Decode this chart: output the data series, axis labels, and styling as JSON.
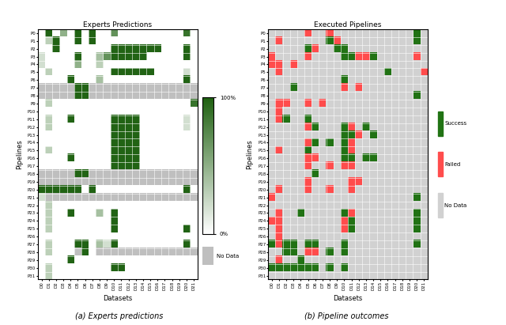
{
  "pipelines": [
    "P0",
    "P1",
    "P2",
    "P3",
    "P4",
    "P5",
    "P6",
    "P7",
    "P8",
    "P9",
    "P10",
    "P11",
    "P12",
    "P13",
    "P14",
    "P15",
    "P16",
    "P17",
    "P18",
    "P19",
    "P20",
    "P21",
    "P22",
    "P23",
    "P24",
    "P25",
    "P26",
    "P27",
    "P28",
    "P29",
    "P30",
    "P31"
  ],
  "datasets": [
    "D0",
    "D1",
    "D2",
    "D3",
    "D4",
    "D5",
    "D6",
    "D7",
    "D8",
    "D9",
    "D10",
    "D11",
    "D12",
    "D13",
    "D14",
    "D15",
    "D16",
    "D17",
    "D18",
    "D19",
    "D20",
    "D21"
  ],
  "title_left": "Experts Predictions",
  "title_right": "Executed Pipelines",
  "xlabel": "Datasets",
  "ylabel": "Pipelines",
  "fig_label_left": "(a) Experts predictions",
  "fig_label_right": "(b) Pipeline outcomes",
  "expert_matrix": [
    [
      -1,
      1.0,
      -1,
      0.5,
      -1,
      1.0,
      -1,
      1.0,
      -1,
      -1,
      0.7,
      -1,
      -1,
      -1,
      -1,
      -1,
      -1,
      -1,
      -1,
      -1,
      0.9,
      -1
    ],
    [
      -1,
      0.3,
      1.0,
      -1,
      -1,
      1.0,
      -1,
      1.0,
      -1,
      -1,
      -1,
      -1,
      -1,
      -1,
      -1,
      -1,
      -1,
      -1,
      -1,
      -1,
      -1,
      -1
    ],
    [
      -1,
      -1,
      1.0,
      -1,
      -1,
      -1,
      -1,
      -1,
      -1,
      -1,
      1.0,
      1.0,
      1.0,
      1.0,
      1.0,
      1.0,
      1.0,
      -1,
      -1,
      -1,
      1.0,
      -1
    ],
    [
      0.2,
      -1,
      -1,
      -1,
      -1,
      1.0,
      -1,
      -1,
      0.4,
      0.7,
      1.0,
      1.0,
      1.0,
      1.0,
      1.0,
      -1,
      0.0,
      -1,
      -1,
      -1,
      1.0,
      -1
    ],
    [
      0.2,
      -1,
      -1,
      -1,
      -1,
      0.5,
      -1,
      -1,
      0.3,
      -1,
      -1,
      -1,
      -1,
      -1,
      -1,
      -1,
      -1,
      -1,
      -1,
      -1,
      -1,
      -1
    ],
    [
      -1,
      0.3,
      -1,
      -1,
      -1,
      -1,
      -1,
      -1,
      -1,
      -1,
      1.0,
      1.0,
      1.0,
      1.0,
      1.0,
      1.0,
      -1,
      -1,
      -1,
      -1,
      0.2,
      -1
    ],
    [
      -1,
      -1,
      -1,
      -1,
      1.0,
      -1,
      -1,
      -1,
      0.4,
      -1,
      -1,
      -1,
      -1,
      -1,
      -1,
      -1,
      -1,
      -1,
      -1,
      -1,
      1.0,
      -1
    ],
    [
      -2,
      -2,
      -2,
      -2,
      -2,
      1.0,
      1.0,
      -2,
      -2,
      -2,
      -2,
      -2,
      -2,
      -2,
      -2,
      -2,
      -2,
      -2,
      -2,
      -2,
      -2,
      -2
    ],
    [
      -2,
      -2,
      -2,
      -2,
      -2,
      1.0,
      1.0,
      -2,
      -2,
      -2,
      -2,
      -2,
      -2,
      -2,
      -2,
      -2,
      -2,
      -2,
      -2,
      -2,
      -2,
      -2
    ],
    [
      -1,
      0.3,
      -1,
      -1,
      -1,
      -1,
      -1,
      -1,
      -1,
      -1,
      -1,
      -1,
      -1,
      -1,
      -1,
      -1,
      -1,
      -1,
      -1,
      -1,
      -1,
      0.9
    ],
    [
      -1,
      -1,
      -1,
      -1,
      -1,
      -1,
      -1,
      -1,
      -1,
      -1,
      -1,
      -1,
      -1,
      -1,
      -1,
      -1,
      -1,
      -1,
      -1,
      -1,
      -1,
      -1
    ],
    [
      -1,
      0.3,
      -1,
      -1,
      1.0,
      -1,
      -1,
      -1,
      -1,
      -1,
      1.0,
      1.0,
      1.0,
      1.0,
      -1,
      -1,
      -1,
      -1,
      -1,
      -1,
      0.2,
      -1
    ],
    [
      -1,
      0.3,
      -1,
      -1,
      -1,
      -1,
      -1,
      -1,
      -1,
      -1,
      1.0,
      1.0,
      1.0,
      1.0,
      -1,
      -1,
      -1,
      -1,
      -1,
      -1,
      0.2,
      -1
    ],
    [
      -1,
      -1,
      -1,
      -1,
      -1,
      -1,
      -1,
      -1,
      -1,
      -1,
      1.0,
      1.0,
      1.0,
      1.0,
      -1,
      -1,
      -1,
      -1,
      -1,
      -1,
      -1,
      -1
    ],
    [
      -1,
      -1,
      -1,
      -1,
      -1,
      -1,
      -1,
      -1,
      -1,
      -1,
      1.0,
      1.0,
      1.0,
      1.0,
      -1,
      -1,
      -1,
      -1,
      -1,
      -1,
      -1,
      -1
    ],
    [
      -1,
      0.3,
      -1,
      -1,
      -1,
      -1,
      -1,
      -1,
      -1,
      -1,
      1.0,
      1.0,
      1.0,
      1.0,
      -1,
      -1,
      -1,
      -1,
      -1,
      -1,
      -1,
      -1
    ],
    [
      -1,
      -1,
      -1,
      -1,
      1.0,
      -1,
      -1,
      -1,
      -1,
      -1,
      1.0,
      1.0,
      1.0,
      1.0,
      -1,
      -1,
      -1,
      -1,
      -1,
      -1,
      -1,
      -1
    ],
    [
      -1,
      -1,
      -1,
      -1,
      -1,
      -1,
      -1,
      -1,
      -1,
      -1,
      1.0,
      1.0,
      1.0,
      1.0,
      -1,
      -1,
      -1,
      -1,
      -1,
      -1,
      -1,
      -1
    ],
    [
      -2,
      -2,
      -2,
      -2,
      -2,
      1.0,
      1.0,
      -2,
      -2,
      -2,
      -2,
      -2,
      -2,
      -2,
      -2,
      -2,
      -2,
      -2,
      -2,
      -2,
      -2,
      -2
    ],
    [
      -2,
      -2,
      -2,
      -2,
      -2,
      -2,
      -2,
      -2,
      -2,
      -2,
      -2,
      -2,
      -2,
      -2,
      -2,
      -2,
      -2,
      -2,
      -2,
      -2,
      -2,
      -2
    ],
    [
      1.0,
      1.0,
      1.0,
      1.0,
      1.0,
      1.0,
      -1,
      1.0,
      -1,
      -1,
      -1,
      -1,
      -1,
      -1,
      -1,
      -1,
      -1,
      -1,
      -1,
      -1,
      1.0,
      -1
    ],
    [
      0.2,
      -2,
      -2,
      -2,
      -2,
      -2,
      -2,
      -2,
      -2,
      -2,
      -2,
      -2,
      -2,
      -2,
      -2,
      -2,
      -2,
      -2,
      -2,
      -2,
      -2,
      -2
    ],
    [
      -1,
      0.3,
      -1,
      -1,
      -1,
      -1,
      -1,
      -1,
      -1,
      -1,
      -1,
      -1,
      -1,
      -1,
      -1,
      -1,
      -1,
      -1,
      -1,
      -1,
      -1,
      -1
    ],
    [
      -1,
      0.3,
      -1,
      -1,
      1.0,
      -1,
      -1,
      -1,
      0.4,
      -1,
      1.0,
      -1,
      -1,
      -1,
      -1,
      -1,
      -1,
      -1,
      -1,
      -1,
      -1,
      -1
    ],
    [
      -1,
      0.3,
      -1,
      -1,
      -1,
      -1,
      -1,
      -1,
      -1,
      -1,
      1.0,
      -1,
      -1,
      -1,
      -1,
      -1,
      -1,
      -1,
      -1,
      -1,
      -1,
      -1
    ],
    [
      -1,
      0.3,
      -1,
      -1,
      -1,
      -1,
      -1,
      -1,
      -1,
      -1,
      1.0,
      -1,
      -1,
      -1,
      -1,
      -1,
      -1,
      -1,
      -1,
      -1,
      1.0,
      -1
    ],
    [
      -1,
      -1,
      -1,
      -1,
      -1,
      -1,
      -1,
      -1,
      -1,
      -1,
      -1,
      -1,
      -1,
      -1,
      -1,
      -1,
      -1,
      -1,
      -1,
      -1,
      -1,
      -1
    ],
    [
      -1,
      0.3,
      -1,
      -1,
      -1,
      1.0,
      1.0,
      -1,
      0.4,
      0.2,
      1.0,
      -1,
      -1,
      -1,
      -1,
      -1,
      -1,
      -1,
      -1,
      -1,
      1.0,
      -1
    ],
    [
      -1,
      0.3,
      -1,
      -1,
      -1,
      -2,
      1.0,
      -1,
      -2,
      -2,
      -2,
      -2,
      -2,
      -2,
      -2,
      -2,
      -2,
      -2,
      -2,
      -2,
      -2,
      -2
    ],
    [
      -1,
      -1,
      -1,
      -1,
      1.0,
      -1,
      -1,
      -1,
      -1,
      -1,
      -1,
      -1,
      -1,
      -1,
      -1,
      -1,
      -1,
      -1,
      -1,
      -1,
      -1,
      -1
    ],
    [
      -1,
      0.3,
      -1,
      -1,
      -1,
      -1,
      -1,
      -1,
      -1,
      -1,
      1.0,
      1.0,
      -1,
      -1,
      -1,
      -1,
      -1,
      -1,
      -1,
      -1,
      -1,
      -1
    ],
    [
      -1,
      0.3,
      -1,
      -1,
      -1,
      -1,
      -1,
      -1,
      -1,
      -1,
      -1,
      -1,
      -1,
      -1,
      -1,
      -1,
      -1,
      -1,
      -1,
      -1,
      -1,
      -1
    ]
  ],
  "pipe_matrix": [
    [
      0,
      0,
      0,
      0,
      0,
      -1,
      0,
      0,
      -1,
      0,
      0,
      0,
      0,
      0,
      0,
      0,
      0,
      0,
      0,
      0,
      1,
      0
    ],
    [
      0,
      -1,
      0,
      0,
      0,
      0,
      0,
      0,
      1,
      -1,
      0,
      0,
      0,
      0,
      0,
      0,
      0,
      0,
      0,
      0,
      1,
      0
    ],
    [
      0,
      0,
      0,
      0,
      0,
      1,
      -1,
      0,
      0,
      1,
      1,
      0,
      0,
      0,
      0,
      0,
      0,
      0,
      0,
      0,
      0,
      0
    ],
    [
      -1,
      0,
      0,
      0,
      0,
      -1,
      0,
      0,
      0,
      0,
      1,
      1,
      -1,
      -1,
      1,
      0,
      0,
      0,
      0,
      0,
      -1,
      0
    ],
    [
      -1,
      -1,
      0,
      -1,
      0,
      0,
      0,
      0,
      0,
      0,
      0,
      0,
      0,
      0,
      0,
      0,
      0,
      0,
      0,
      0,
      0,
      0
    ],
    [
      0,
      -1,
      0,
      0,
      0,
      0,
      0,
      0,
      0,
      0,
      0,
      0,
      0,
      0,
      0,
      0,
      1,
      0,
      0,
      0,
      0,
      -1
    ],
    [
      0,
      0,
      0,
      0,
      0,
      0,
      0,
      0,
      0,
      0,
      1,
      0,
      0,
      0,
      0,
      0,
      0,
      0,
      0,
      0,
      0,
      0
    ],
    [
      0,
      0,
      0,
      1,
      0,
      0,
      0,
      0,
      0,
      0,
      -1,
      0,
      -1,
      0,
      0,
      0,
      0,
      0,
      0,
      0,
      0,
      0
    ],
    [
      0,
      0,
      0,
      0,
      0,
      0,
      0,
      0,
      0,
      0,
      0,
      0,
      0,
      0,
      0,
      0,
      0,
      0,
      0,
      0,
      1,
      0
    ],
    [
      0,
      -1,
      -1,
      0,
      0,
      -1,
      0,
      -1,
      0,
      0,
      0,
      0,
      0,
      0,
      0,
      0,
      0,
      0,
      0,
      0,
      0,
      0
    ],
    [
      0,
      -1,
      0,
      0,
      0,
      0,
      0,
      0,
      0,
      0,
      0,
      0,
      0,
      0,
      0,
      0,
      0,
      0,
      0,
      0,
      0,
      0
    ],
    [
      0,
      -1,
      1,
      0,
      0,
      1,
      0,
      0,
      0,
      0,
      0,
      0,
      0,
      0,
      0,
      0,
      0,
      0,
      0,
      0,
      0,
      0
    ],
    [
      0,
      0,
      0,
      0,
      0,
      -1,
      1,
      0,
      0,
      0,
      1,
      -1,
      0,
      1,
      0,
      0,
      0,
      0,
      0,
      0,
      0,
      0
    ],
    [
      0,
      0,
      0,
      0,
      0,
      0,
      0,
      0,
      0,
      0,
      1,
      1,
      -1,
      0,
      1,
      0,
      0,
      0,
      0,
      0,
      0,
      0
    ],
    [
      0,
      0,
      0,
      0,
      0,
      -1,
      1,
      0,
      1,
      0,
      1,
      -1,
      0,
      0,
      0,
      0,
      0,
      0,
      0,
      0,
      0,
      0
    ],
    [
      0,
      -1,
      0,
      0,
      0,
      1,
      0,
      0,
      0,
      0,
      1,
      -1,
      0,
      0,
      0,
      0,
      0,
      0,
      0,
      0,
      0,
      0
    ],
    [
      0,
      0,
      0,
      0,
      0,
      -1,
      -1,
      0,
      0,
      0,
      1,
      1,
      0,
      1,
      1,
      0,
      0,
      0,
      0,
      0,
      0,
      0
    ],
    [
      0,
      0,
      0,
      0,
      0,
      -1,
      0,
      0,
      -1,
      0,
      -1,
      -1,
      0,
      0,
      0,
      0,
      0,
      0,
      0,
      0,
      0,
      0
    ],
    [
      0,
      0,
      0,
      0,
      0,
      0,
      1,
      0,
      0,
      0,
      0,
      0,
      0,
      0,
      0,
      0,
      0,
      0,
      0,
      0,
      0,
      0
    ],
    [
      0,
      0,
      0,
      0,
      0,
      -1,
      0,
      0,
      0,
      0,
      0,
      -1,
      -1,
      0,
      0,
      0,
      0,
      0,
      0,
      0,
      0,
      0
    ],
    [
      0,
      -1,
      0,
      0,
      0,
      -1,
      0,
      0,
      -1,
      0,
      0,
      -1,
      0,
      0,
      0,
      0,
      0,
      0,
      0,
      0,
      0,
      0
    ],
    [
      -1,
      0,
      0,
      0,
      0,
      0,
      0,
      0,
      0,
      0,
      0,
      0,
      0,
      0,
      0,
      0,
      0,
      0,
      0,
      0,
      1,
      0
    ],
    [
      0,
      0,
      0,
      0,
      0,
      0,
      0,
      0,
      0,
      0,
      0,
      0,
      0,
      0,
      0,
      0,
      0,
      0,
      0,
      0,
      0,
      0
    ],
    [
      0,
      -1,
      0,
      0,
      1,
      0,
      0,
      0,
      0,
      0,
      1,
      -1,
      0,
      0,
      0,
      0,
      0,
      0,
      0,
      0,
      1,
      0
    ],
    [
      -1,
      -1,
      0,
      0,
      0,
      0,
      0,
      0,
      0,
      0,
      -1,
      1,
      0,
      0,
      0,
      0,
      0,
      0,
      0,
      0,
      1,
      0
    ],
    [
      0,
      -1,
      0,
      0,
      0,
      0,
      0,
      0,
      0,
      0,
      -1,
      1,
      0,
      0,
      0,
      0,
      0,
      0,
      0,
      0,
      1,
      0
    ],
    [
      0,
      -1,
      0,
      0,
      0,
      0,
      0,
      0,
      0,
      0,
      0,
      0,
      0,
      0,
      0,
      0,
      0,
      0,
      0,
      0,
      0,
      0
    ],
    [
      1,
      -1,
      1,
      1,
      0,
      1,
      1,
      0,
      0,
      0,
      1,
      0,
      0,
      0,
      0,
      0,
      0,
      0,
      0,
      0,
      1,
      0
    ],
    [
      0,
      0,
      1,
      1,
      0,
      -1,
      -1,
      0,
      1,
      0,
      1,
      0,
      0,
      0,
      0,
      0,
      0,
      0,
      0,
      0,
      0,
      0
    ],
    [
      0,
      -1,
      0,
      0,
      1,
      0,
      0,
      0,
      0,
      0,
      0,
      0,
      0,
      0,
      0,
      0,
      0,
      0,
      0,
      0,
      0,
      0
    ],
    [
      1,
      1,
      1,
      1,
      1,
      1,
      1,
      0,
      1,
      0,
      1,
      0,
      0,
      0,
      0,
      0,
      0,
      0,
      0,
      0,
      0,
      0
    ],
    [
      0,
      0,
      0,
      0,
      0,
      0,
      0,
      0,
      0,
      0,
      0,
      0,
      0,
      0,
      0,
      0,
      0,
      0,
      0,
      0,
      0,
      0
    ]
  ]
}
